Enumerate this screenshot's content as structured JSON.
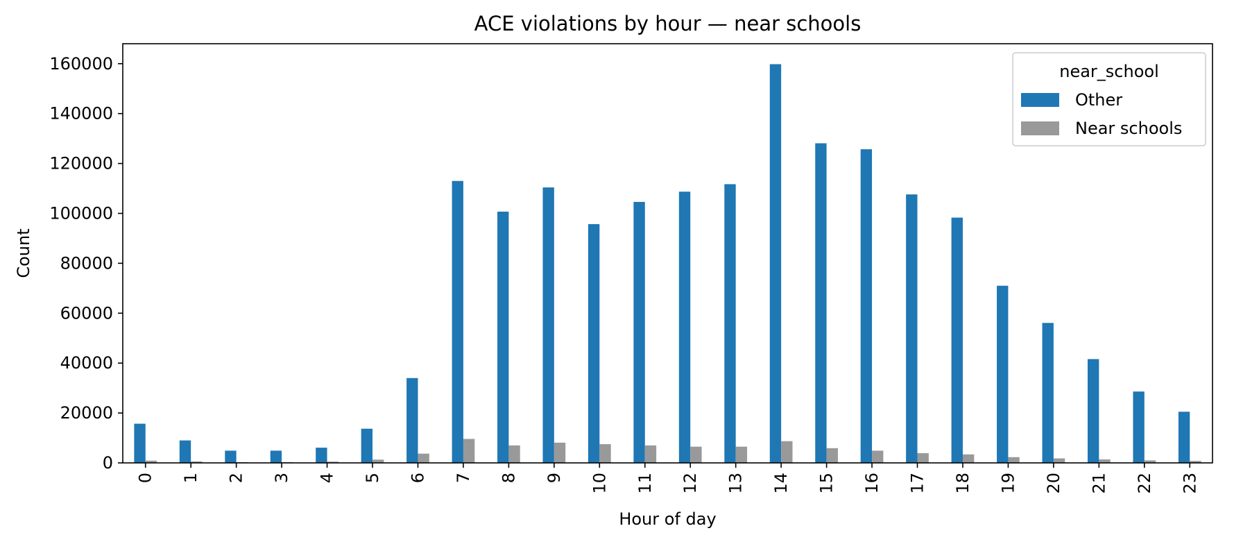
{
  "chart_data": {
    "type": "bar",
    "title": "ACE violations by hour — near schools",
    "xlabel": "Hour of day",
    "ylabel": "Count",
    "ylim": [
      0,
      168000
    ],
    "yticks": [
      0,
      20000,
      40000,
      60000,
      80000,
      100000,
      120000,
      140000,
      160000
    ],
    "categories": [
      "0",
      "1",
      "2",
      "3",
      "4",
      "5",
      "6",
      "7",
      "8",
      "9",
      "10",
      "11",
      "12",
      "13",
      "14",
      "15",
      "16",
      "17",
      "18",
      "19",
      "20",
      "21",
      "22",
      "23"
    ],
    "legend": {
      "title": "near_school",
      "position": "top-right"
    },
    "grid": false,
    "series": [
      {
        "name": "Other",
        "color": "#1f77b4",
        "values": [
          15700,
          9000,
          4900,
          4900,
          6100,
          13700,
          34000,
          113000,
          100700,
          110400,
          95700,
          104600,
          108700,
          111700,
          159800,
          128100,
          125700,
          107600,
          98300,
          71000,
          56100,
          41600,
          28600,
          20500
        ]
      },
      {
        "name": "Near schools",
        "color": "#999999",
        "values": [
          900,
          600,
          300,
          300,
          500,
          1300,
          3700,
          9600,
          7000,
          8100,
          7500,
          7000,
          6500,
          6500,
          8700,
          5900,
          4900,
          3900,
          3400,
          2300,
          1800,
          1400,
          1000,
          800
        ]
      }
    ]
  }
}
